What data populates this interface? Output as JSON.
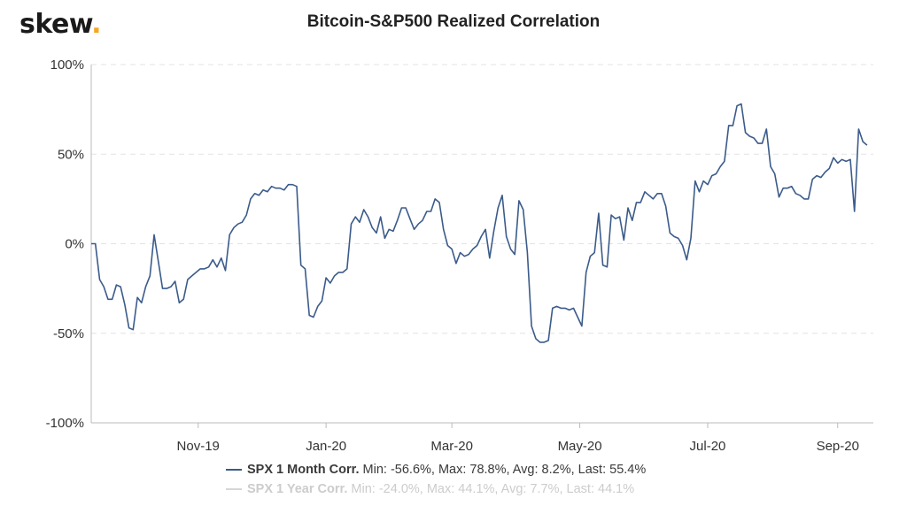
{
  "brand": {
    "logo_text": "skew",
    "logo_dot": ".",
    "dot_color": "#f5a623"
  },
  "chart_data": {
    "type": "line",
    "title": "Bitcoin-S&P500 Realized Correlation",
    "xlabel": "",
    "ylabel": "",
    "ylim": [
      -100,
      100
    ],
    "y_ticks": [
      "100%",
      "50%",
      "0%",
      "-50%",
      "-100%"
    ],
    "x_ticks": [
      "Nov-19",
      "Jan-20",
      "Mar-20",
      "May-20",
      "Jul-20",
      "Sep-20"
    ],
    "x_range": [
      "2019-09-11",
      "2020-09-18"
    ],
    "grid": "horizontal dashed",
    "legend_position": "bottom",
    "series": [
      {
        "name": "SPX 1 Month Corr.",
        "stats": "Min: -56.6%, Max: 78.8%, Avg: 8.2%, Last: 55.4%",
        "color": "#3b5b8a",
        "visible": true,
        "points": [
          [
            "2019-09-11",
            0
          ],
          [
            "2019-09-13",
            0
          ],
          [
            "2019-09-15",
            -20
          ],
          [
            "2019-09-17",
            -24
          ],
          [
            "2019-09-19",
            -31
          ],
          [
            "2019-09-21",
            -31
          ],
          [
            "2019-09-23",
            -23
          ],
          [
            "2019-09-25",
            -24
          ],
          [
            "2019-09-27",
            -34
          ],
          [
            "2019-09-29",
            -47
          ],
          [
            "2019-10-01",
            -48
          ],
          [
            "2019-10-03",
            -30
          ],
          [
            "2019-10-05",
            -33
          ],
          [
            "2019-10-07",
            -24
          ],
          [
            "2019-10-09",
            -18
          ],
          [
            "2019-10-11",
            5
          ],
          [
            "2019-10-13",
            -10
          ],
          [
            "2019-10-15",
            -25
          ],
          [
            "2019-10-17",
            -25
          ],
          [
            "2019-10-19",
            -24
          ],
          [
            "2019-10-21",
            -21
          ],
          [
            "2019-10-23",
            -33
          ],
          [
            "2019-10-25",
            -31
          ],
          [
            "2019-10-27",
            -20
          ],
          [
            "2019-10-29",
            -18
          ],
          [
            "2019-10-31",
            -16
          ],
          [
            "2019-11-02",
            -14
          ],
          [
            "2019-11-04",
            -14
          ],
          [
            "2019-11-06",
            -13
          ],
          [
            "2019-11-08",
            -9
          ],
          [
            "2019-11-10",
            -13
          ],
          [
            "2019-11-12",
            -8
          ],
          [
            "2019-11-14",
            -15
          ],
          [
            "2019-11-16",
            5
          ],
          [
            "2019-11-18",
            9
          ],
          [
            "2019-11-20",
            11
          ],
          [
            "2019-11-22",
            12
          ],
          [
            "2019-11-24",
            16
          ],
          [
            "2019-11-26",
            25
          ],
          [
            "2019-11-28",
            28
          ],
          [
            "2019-11-30",
            27
          ],
          [
            "2019-12-02",
            30
          ],
          [
            "2019-12-04",
            29
          ],
          [
            "2019-12-06",
            32
          ],
          [
            "2019-12-08",
            31
          ],
          [
            "2019-12-10",
            31
          ],
          [
            "2019-12-12",
            30
          ],
          [
            "2019-12-14",
            33
          ],
          [
            "2019-12-16",
            33
          ],
          [
            "2019-12-18",
            32
          ],
          [
            "2019-12-20",
            -12
          ],
          [
            "2019-12-22",
            -14
          ],
          [
            "2019-12-24",
            -40
          ],
          [
            "2019-12-26",
            -41
          ],
          [
            "2019-12-28",
            -35
          ],
          [
            "2019-12-30",
            -32
          ],
          [
            "2020-01-01",
            -19
          ],
          [
            "2020-01-03",
            -22
          ],
          [
            "2020-01-05",
            -18
          ],
          [
            "2020-01-07",
            -16
          ],
          [
            "2020-01-09",
            -16
          ],
          [
            "2020-01-11",
            -14
          ],
          [
            "2020-01-13",
            11
          ],
          [
            "2020-01-15",
            15
          ],
          [
            "2020-01-17",
            12
          ],
          [
            "2020-01-19",
            19
          ],
          [
            "2020-01-21",
            15
          ],
          [
            "2020-01-23",
            9
          ],
          [
            "2020-01-25",
            6
          ],
          [
            "2020-01-27",
            15
          ],
          [
            "2020-01-29",
            3
          ],
          [
            "2020-01-31",
            8
          ],
          [
            "2020-02-02",
            7
          ],
          [
            "2020-02-04",
            13
          ],
          [
            "2020-02-06",
            20
          ],
          [
            "2020-02-08",
            20
          ],
          [
            "2020-02-10",
            14
          ],
          [
            "2020-02-12",
            8
          ],
          [
            "2020-02-14",
            11
          ],
          [
            "2020-02-16",
            13
          ],
          [
            "2020-02-18",
            18
          ],
          [
            "2020-02-20",
            18
          ],
          [
            "2020-02-22",
            25
          ],
          [
            "2020-02-24",
            23
          ],
          [
            "2020-02-26",
            8
          ],
          [
            "2020-02-28",
            -1
          ],
          [
            "2020-03-01",
            -3
          ],
          [
            "2020-03-03",
            -11
          ],
          [
            "2020-03-05",
            -5
          ],
          [
            "2020-03-07",
            -7
          ],
          [
            "2020-03-09",
            -6
          ],
          [
            "2020-03-11",
            -3
          ],
          [
            "2020-03-13",
            -1
          ],
          [
            "2020-03-15",
            4
          ],
          [
            "2020-03-17",
            8
          ],
          [
            "2020-03-19",
            -8
          ],
          [
            "2020-03-21",
            7
          ],
          [
            "2020-03-23",
            20
          ],
          [
            "2020-03-25",
            27
          ],
          [
            "2020-03-27",
            4
          ],
          [
            "2020-03-29",
            -3
          ],
          [
            "2020-03-31",
            -6
          ],
          [
            "2020-04-02",
            24
          ],
          [
            "2020-04-04",
            19
          ],
          [
            "2020-04-06",
            -5
          ],
          [
            "2020-04-08",
            -46
          ],
          [
            "2020-04-10",
            -53
          ],
          [
            "2020-04-12",
            -55
          ],
          [
            "2020-04-14",
            -55
          ],
          [
            "2020-04-16",
            -54
          ],
          [
            "2020-04-18",
            -36
          ],
          [
            "2020-04-20",
            -35
          ],
          [
            "2020-04-22",
            -36
          ],
          [
            "2020-04-24",
            -36
          ],
          [
            "2020-04-26",
            -37
          ],
          [
            "2020-04-28",
            -36
          ],
          [
            "2020-04-30",
            -41
          ],
          [
            "2020-05-02",
            -46
          ],
          [
            "2020-05-04",
            -16
          ],
          [
            "2020-05-06",
            -7
          ],
          [
            "2020-05-08",
            -5
          ],
          [
            "2020-05-10",
            17
          ],
          [
            "2020-05-12",
            -12
          ],
          [
            "2020-05-14",
            -13
          ],
          [
            "2020-05-16",
            16
          ],
          [
            "2020-05-18",
            14
          ],
          [
            "2020-05-20",
            15
          ],
          [
            "2020-05-22",
            2
          ],
          [
            "2020-05-24",
            20
          ],
          [
            "2020-05-26",
            13
          ],
          [
            "2020-05-28",
            23
          ],
          [
            "2020-05-30",
            23
          ],
          [
            "2020-06-01",
            29
          ],
          [
            "2020-06-03",
            27
          ],
          [
            "2020-06-05",
            25
          ],
          [
            "2020-06-07",
            28
          ],
          [
            "2020-06-09",
            28
          ],
          [
            "2020-06-11",
            21
          ],
          [
            "2020-06-13",
            6
          ],
          [
            "2020-06-15",
            4
          ],
          [
            "2020-06-17",
            3
          ],
          [
            "2020-06-19",
            -1
          ],
          [
            "2020-06-21",
            -9
          ],
          [
            "2020-06-23",
            3
          ],
          [
            "2020-06-25",
            35
          ],
          [
            "2020-06-27",
            29
          ],
          [
            "2020-06-29",
            35
          ],
          [
            "2020-07-01",
            33
          ],
          [
            "2020-07-03",
            38
          ],
          [
            "2020-07-05",
            39
          ],
          [
            "2020-07-07",
            43
          ],
          [
            "2020-07-09",
            46
          ],
          [
            "2020-07-11",
            66
          ],
          [
            "2020-07-13",
            66
          ],
          [
            "2020-07-15",
            77
          ],
          [
            "2020-07-17",
            78
          ],
          [
            "2020-07-19",
            62
          ],
          [
            "2020-07-21",
            60
          ],
          [
            "2020-07-23",
            59
          ],
          [
            "2020-07-25",
            56
          ],
          [
            "2020-07-27",
            56
          ],
          [
            "2020-07-29",
            64
          ],
          [
            "2020-07-31",
            43
          ],
          [
            "2020-08-02",
            39
          ],
          [
            "2020-08-04",
            26
          ],
          [
            "2020-08-06",
            31
          ],
          [
            "2020-08-08",
            31
          ],
          [
            "2020-08-10",
            32
          ],
          [
            "2020-08-12",
            28
          ],
          [
            "2020-08-14",
            27
          ],
          [
            "2020-08-16",
            25
          ],
          [
            "2020-08-18",
            25
          ],
          [
            "2020-08-20",
            36
          ],
          [
            "2020-08-22",
            38
          ],
          [
            "2020-08-24",
            37
          ],
          [
            "2020-08-26",
            40
          ],
          [
            "2020-08-28",
            42
          ],
          [
            "2020-08-30",
            48
          ],
          [
            "2020-09-01",
            45
          ],
          [
            "2020-09-03",
            47
          ],
          [
            "2020-09-05",
            46
          ],
          [
            "2020-09-07",
            47
          ],
          [
            "2020-09-09",
            18
          ],
          [
            "2020-09-11",
            64
          ],
          [
            "2020-09-13",
            57
          ],
          [
            "2020-09-15",
            55
          ]
        ]
      },
      {
        "name": "SPX 1 Year Corr.",
        "stats": "Min: -24.0%, Max: 44.1%, Avg: 7.7%, Last: 44.1%",
        "color": "#d6d6d6",
        "visible": false
      }
    ]
  }
}
